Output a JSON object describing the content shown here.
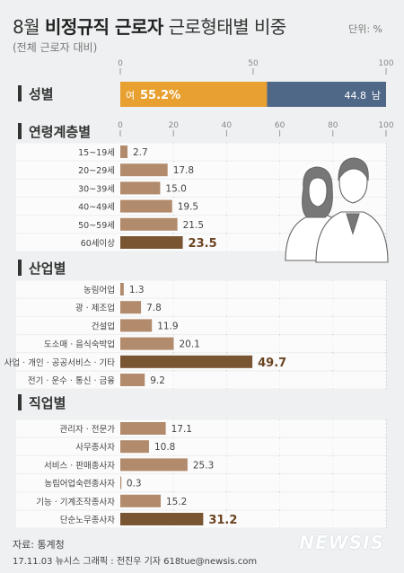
{
  "header": {
    "title_part1": "8월 ",
    "title_bold": "비정규직 근로자",
    "title_part2": " 근로형태별 비중",
    "subtitle": "(전체 근로자 대비)",
    "unit": "단위: %"
  },
  "footer": {
    "source": "자료: 통계청",
    "credit": "17.11.03   뉴시스 그래픽 : 전진우 기자 618tue@newsis.com",
    "logo": "NEWSIS"
  },
  "colors": {
    "bar": "#b28b6c",
    "bar_highlight": "#7a5532",
    "female": "#e8a030",
    "male": "#4f6888",
    "label_highlight": "#6b4420"
  },
  "chart_data": [
    {
      "type": "bar",
      "title": "성별",
      "stacked": true,
      "xlim": [
        0,
        100
      ],
      "ticks": [
        "0",
        "50",
        "100"
      ],
      "series": [
        {
          "name": "여",
          "value": 55.2,
          "label": "55.2%"
        },
        {
          "name": "남",
          "value": 44.8,
          "label": "44.8"
        }
      ]
    },
    {
      "type": "bar",
      "title": "연령계층별",
      "xlim": [
        0,
        100
      ],
      "ticks": [
        "0",
        "20",
        "40",
        "60",
        "80",
        "100"
      ],
      "categories": [
        "15~19세",
        "20~29세",
        "30~39세",
        "40~49세",
        "50~59세",
        "60세이상"
      ],
      "values": [
        2.7,
        17.8,
        15.0,
        19.5,
        21.5,
        23.5
      ],
      "labels": [
        "2.7",
        "17.8",
        "15.0",
        "19.5",
        "21.5",
        "23.5"
      ],
      "highlight": [
        5
      ]
    },
    {
      "type": "bar",
      "title": "산업별",
      "xlim": [
        0,
        100
      ],
      "categories": [
        "농림어업",
        "광 · 제조업",
        "건설업",
        "도소매 · 음식숙박업",
        "사업 · 개인 · 공공서비스 · 기타",
        "전기 · 운수 · 통신 · 금융"
      ],
      "values": [
        1.3,
        7.8,
        11.9,
        20.1,
        49.7,
        9.2
      ],
      "labels": [
        "1.3",
        "7.8",
        "11.9",
        "20.1",
        "49.7",
        "9.2"
      ],
      "highlight": [
        4
      ]
    },
    {
      "type": "bar",
      "title": "직업별",
      "xlim": [
        0,
        100
      ],
      "categories": [
        "관리자 · 전문가",
        "사무종사자",
        "서비스 · 판매종사자",
        "농림어업숙련종사자",
        "기능 · 기계조작종사자",
        "단순노무종사자"
      ],
      "values": [
        17.1,
        10.8,
        25.3,
        0.3,
        15.2,
        31.2
      ],
      "labels": [
        "17.1",
        "10.8",
        "25.3",
        "0.3",
        "15.2",
        "31.2"
      ],
      "highlight": [
        5
      ]
    }
  ]
}
